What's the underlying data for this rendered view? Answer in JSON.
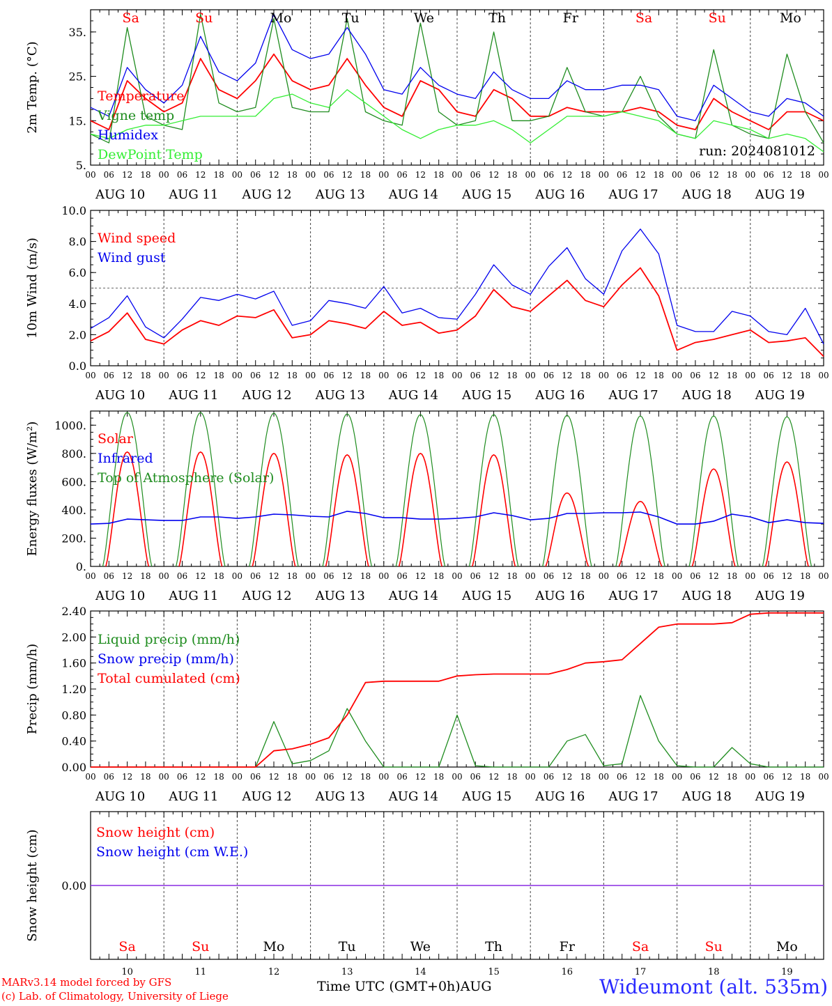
{
  "colors": {
    "red": "#ff0000",
    "green": "#1e8c1e",
    "blue": "#0000ee",
    "lightgreen": "#33ee33",
    "purple": "#8a2be2"
  },
  "header": {
    "weekdays": [
      "Sa",
      "Su",
      "Mo",
      "Tu",
      "We",
      "Th",
      "Fr",
      "Sa",
      "Su",
      "Mo"
    ],
    "weekday_colors": [
      "#ff0000",
      "#ff0000",
      "#000000",
      "#000000",
      "#000000",
      "#000000",
      "#000000",
      "#ff0000",
      "#ff0000",
      "#000000"
    ]
  },
  "hour_ticks": [
    "00",
    "06",
    "12",
    "18"
  ],
  "hour_end": "00",
  "date_labels": [
    "AUG 10",
    "AUG 11",
    "AUG 12",
    "AUG 13",
    "AUG 14",
    "AUG 15",
    "AUG 16",
    "AUG 17",
    "AUG 18",
    "AUG 19"
  ],
  "bottom_days": [
    "10",
    "11",
    "12",
    "13",
    "14",
    "15",
    "16",
    "17",
    "18",
    "19"
  ],
  "footer": {
    "credit_line1": "MARv3.14 model forced by GFS",
    "credit_line2": "(c) Lab. of Climatology, University of Liege",
    "xaxis_label": "Time UTC (GMT+0h)AUG",
    "station": "Wideumont (alt. 535m)"
  },
  "chart_data": [
    {
      "id": "temperature",
      "type": "line",
      "ylabel": "2m Temp. (°C)",
      "ylim": [
        5,
        40
      ],
      "yticks": [
        5,
        15,
        25,
        35
      ],
      "ytick_labels": [
        "5.",
        "15.",
        "25.",
        "35."
      ],
      "run_label": "run: 2024081012",
      "legend": [
        {
          "name": "Temperature",
          "color": "#ff0000"
        },
        {
          "name": "Vigne temp",
          "color": "#1e8c1e"
        },
        {
          "name": "Humidex",
          "color": "#0000ee"
        },
        {
          "name": "DewPoint Temp",
          "color": "#33ee33"
        }
      ],
      "x_hours": [
        0,
        6,
        12,
        18,
        24,
        30,
        36,
        42,
        48,
        54,
        60,
        66,
        72,
        78,
        84,
        90,
        96,
        102,
        108,
        114,
        120,
        126,
        132,
        138,
        144,
        150,
        156,
        162,
        168,
        174,
        180,
        186,
        192,
        198,
        204,
        210,
        216,
        222,
        228,
        234,
        240
      ],
      "series": [
        {
          "name": "Temperature",
          "color": "#ff0000",
          "values": [
            15,
            13,
            24,
            20,
            17,
            19,
            29,
            22,
            20,
            24,
            30,
            24,
            22,
            23,
            29,
            23,
            18,
            16,
            24,
            22,
            17,
            16,
            22,
            20,
            16,
            16,
            18,
            17,
            17,
            17,
            18,
            17,
            14,
            13,
            20,
            17,
            15,
            13,
            17,
            17,
            15
          ]
        },
        {
          "name": "Vigne temp",
          "color": "#1e8c1e",
          "values": [
            12,
            10,
            36,
            16,
            14,
            13,
            39,
            19,
            17,
            18,
            38,
            18,
            17,
            17,
            38,
            17,
            15,
            14,
            37,
            17,
            14,
            15,
            35,
            15,
            15,
            16,
            27,
            17,
            16,
            17,
            25,
            16,
            12,
            11,
            31,
            14,
            12,
            11,
            30,
            17,
            10
          ]
        },
        {
          "name": "Humidex",
          "color": "#0000ee",
          "values": [
            18,
            16,
            27,
            22,
            19,
            23,
            34,
            26,
            24,
            28,
            39,
            31,
            29,
            30,
            36,
            30,
            22,
            21,
            27,
            23,
            21,
            20,
            26,
            22,
            20,
            20,
            24,
            22,
            22,
            23,
            23,
            22,
            16,
            15,
            23,
            20,
            17,
            16,
            20,
            19,
            16
          ]
        },
        {
          "name": "DewPoint Temp",
          "color": "#33ee33",
          "values": [
            12,
            11,
            13,
            14,
            14,
            15,
            16,
            16,
            16,
            16,
            20,
            21,
            19,
            18,
            22,
            19,
            16,
            13,
            11,
            13,
            14,
            14,
            15,
            13,
            10,
            13,
            16,
            16,
            16,
            17,
            16,
            15,
            12,
            11,
            15,
            14,
            13,
            11,
            12,
            11,
            8
          ]
        }
      ]
    },
    {
      "id": "wind",
      "type": "line",
      "ylabel": "10m Wind (m/s)",
      "ylim": [
        0,
        10
      ],
      "yticks": [
        0,
        2,
        4,
        6,
        8,
        10
      ],
      "ytick_labels": [
        "0.0",
        "2.0",
        "4.0",
        "6.0",
        "8.0",
        "10.0"
      ],
      "reference_line": 5,
      "legend": [
        {
          "name": "Wind speed",
          "color": "#ff0000"
        },
        {
          "name": "Wind gust",
          "color": "#0000ee"
        }
      ],
      "x_hours": [
        0,
        6,
        12,
        18,
        24,
        30,
        36,
        42,
        48,
        54,
        60,
        66,
        72,
        78,
        84,
        90,
        96,
        102,
        108,
        114,
        120,
        126,
        132,
        138,
        144,
        150,
        156,
        162,
        168,
        174,
        180,
        186,
        192,
        198,
        204,
        210,
        216,
        222,
        228,
        234,
        240
      ],
      "series": [
        {
          "name": "Wind speed",
          "color": "#ff0000",
          "values": [
            1.6,
            2.2,
            3.4,
            1.7,
            1.4,
            2.3,
            2.9,
            2.6,
            3.2,
            3.1,
            3.6,
            1.8,
            2.0,
            2.9,
            2.7,
            2.4,
            3.5,
            2.6,
            2.8,
            2.1,
            2.3,
            3.2,
            4.9,
            3.8,
            3.5,
            4.5,
            5.5,
            4.2,
            3.8,
            5.2,
            6.3,
            4.5,
            1.0,
            1.5,
            1.7,
            2.0,
            2.3,
            1.5,
            1.6,
            1.8,
            0.6
          ]
        },
        {
          "name": "Wind gust",
          "color": "#0000ee",
          "values": [
            2.4,
            3.1,
            4.5,
            2.5,
            1.8,
            3.0,
            4.4,
            4.2,
            4.6,
            4.3,
            4.8,
            2.6,
            2.9,
            4.2,
            4.0,
            3.7,
            5.1,
            3.4,
            3.7,
            3.1,
            3.0,
            4.6,
            6.5,
            5.2,
            4.6,
            6.4,
            7.6,
            5.6,
            4.6,
            7.4,
            8.8,
            7.2,
            2.6,
            2.2,
            2.2,
            3.5,
            3.2,
            2.2,
            2.0,
            3.7,
            1.4
          ]
        }
      ]
    },
    {
      "id": "energy",
      "type": "line",
      "ylabel": "Energy fluxes (W/m²)",
      "ylim": [
        0,
        1100
      ],
      "yticks": [
        0,
        200,
        400,
        600,
        800,
        1000
      ],
      "ytick_labels": [
        "0.",
        "200.",
        "400.",
        "600.",
        "800.",
        "1000."
      ],
      "legend": [
        {
          "name": "Solar",
          "color": "#ff0000"
        },
        {
          "name": "Infrared",
          "color": "#0000ee"
        },
        {
          "name": "Top of Atmosphere (Solar)",
          "color": "#1e8c1e"
        }
      ],
      "daily_peak_toa": [
        1090,
        1090,
        1085,
        1080,
        1075,
        1075,
        1070,
        1065,
        1065,
        1060
      ],
      "daily_peak_solar": [
        810,
        810,
        800,
        790,
        800,
        790,
        520,
        460,
        690,
        740
      ],
      "x_hours": [
        0,
        6,
        12,
        18,
        24,
        30,
        36,
        42,
        48,
        54,
        60,
        66,
        72,
        78,
        84,
        90,
        96,
        102,
        108,
        114,
        120,
        126,
        132,
        138,
        144,
        150,
        156,
        162,
        168,
        174,
        180,
        186,
        192,
        198,
        204,
        210,
        216,
        222,
        228,
        234,
        240
      ],
      "series": [
        {
          "name": "Infrared",
          "color": "#0000ee",
          "values": [
            300,
            305,
            335,
            330,
            325,
            325,
            350,
            350,
            340,
            350,
            370,
            365,
            355,
            350,
            390,
            375,
            345,
            345,
            335,
            335,
            340,
            350,
            380,
            360,
            330,
            340,
            375,
            375,
            380,
            380,
            385,
            350,
            300,
            300,
            320,
            370,
            350,
            310,
            330,
            310,
            305
          ]
        }
      ]
    },
    {
      "id": "precip",
      "type": "line",
      "ylabel": "Precip (mm/h)",
      "ylim": [
        0,
        2.4
      ],
      "yticks": [
        0,
        0.4,
        0.8,
        1.2,
        1.6,
        2.0,
        2.4
      ],
      "ytick_labels": [
        "0.00",
        "0.40",
        "0.80",
        "1.20",
        "1.60",
        "2.00",
        "2.40"
      ],
      "legend": [
        {
          "name": "Liquid precip (mm/h)",
          "color": "#1e8c1e"
        },
        {
          "name": "Snow precip (mm/h)",
          "color": "#0000ee"
        },
        {
          "name": "Total cumulated (cm)",
          "color": "#ff0000"
        }
      ],
      "x_hours": [
        0,
        54,
        60,
        66,
        72,
        78,
        84,
        90,
        96,
        102,
        108,
        114,
        120,
        126,
        132,
        138,
        144,
        150,
        156,
        162,
        168,
        174,
        180,
        186,
        192,
        198,
        204,
        210,
        216,
        222,
        228,
        234,
        240
      ],
      "series": [
        {
          "name": "Liquid precip (mm/h)",
          "color": "#1e8c1e",
          "values": [
            0,
            0,
            0.7,
            0.05,
            0.1,
            0.25,
            0.9,
            0.4,
            0,
            0,
            0,
            0,
            0.8,
            0.02,
            0,
            0,
            0,
            0,
            0.4,
            0.5,
            0.02,
            0.05,
            1.1,
            0.4,
            0.02,
            0,
            0,
            0.3,
            0.05,
            0,
            0,
            0,
            0
          ]
        },
        {
          "name": "Total cumulated (cm)",
          "color": "#ff0000",
          "values": [
            0,
            0,
            0.25,
            0.28,
            0.35,
            0.45,
            0.8,
            1.3,
            1.32,
            1.32,
            1.32,
            1.32,
            1.4,
            1.42,
            1.43,
            1.43,
            1.43,
            1.43,
            1.5,
            1.6,
            1.62,
            1.65,
            1.9,
            2.15,
            2.2,
            2.2,
            2.2,
            2.22,
            2.35,
            2.37,
            2.37,
            2.37,
            2.37
          ]
        }
      ]
    },
    {
      "id": "snow",
      "type": "line",
      "ylabel": "Snow height (cm)",
      "yticks": [
        0
      ],
      "ytick_labels": [
        "0.00"
      ],
      "legend": [
        {
          "name": "Snow height (cm)",
          "color": "#ff0000"
        },
        {
          "name": "Snow height (cm W.E.)",
          "color": "#0000ee"
        }
      ],
      "series": [
        {
          "name": "Snow height",
          "color": "#8a2be2",
          "values": [
            0,
            0
          ]
        }
      ]
    }
  ]
}
